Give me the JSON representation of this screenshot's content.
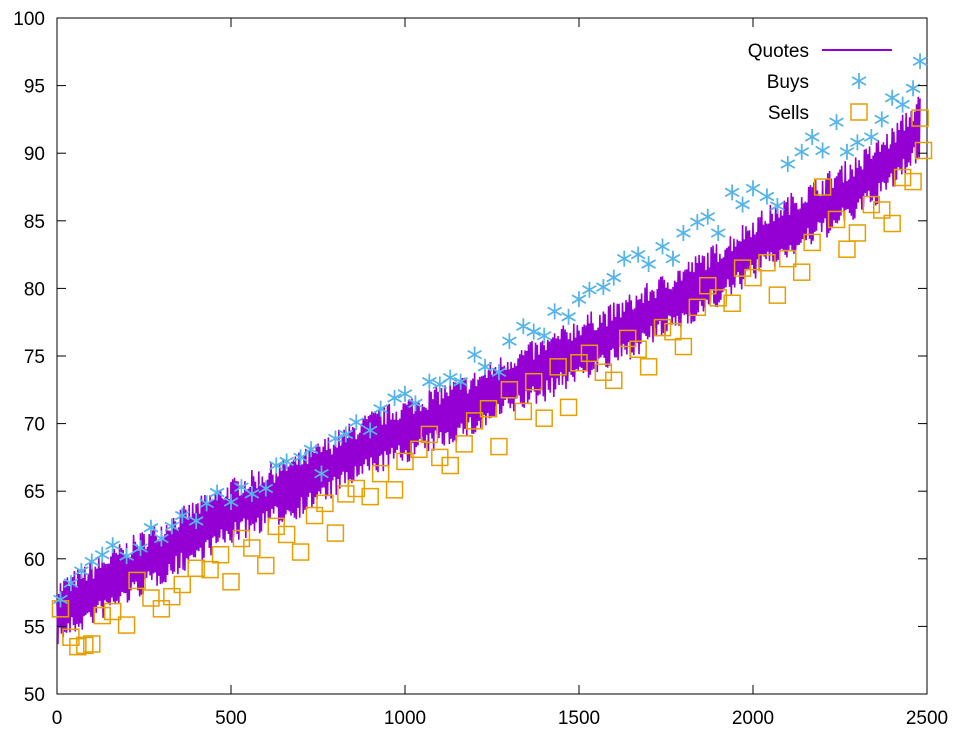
{
  "chart_data": {
    "type": "line",
    "title": "",
    "xlabel": "",
    "ylabel": "",
    "xlim": [
      0,
      2500
    ],
    "ylim": [
      50,
      100
    ],
    "xticks": [
      0,
      500,
      1000,
      1500,
      2000,
      2500
    ],
    "yticks": [
      50,
      55,
      60,
      65,
      70,
      75,
      80,
      85,
      90,
      95,
      100
    ],
    "grid": false,
    "legend_position": "top-right",
    "legend": [
      "Quotes",
      "Buys",
      "Sells"
    ],
    "colors": {
      "quotes": "#9400d3",
      "buys": "#56b4e9",
      "sells": "#e69f00"
    },
    "series": [
      {
        "name": "Quotes",
        "kind": "line",
        "x": [
          0,
          100,
          200,
          300,
          400,
          500,
          600,
          700,
          800,
          900,
          1000,
          1100,
          1200,
          1300,
          1400,
          1500,
          1600,
          1700,
          1800,
          1900,
          2000,
          2100,
          2200,
          2300,
          2400,
          2480
        ],
        "y": [
          56,
          57.5,
          59,
          60.5,
          62,
          63.5,
          64.5,
          65.5,
          67,
          68.5,
          69.5,
          70.5,
          71.5,
          73,
          74,
          75.5,
          76.5,
          78,
          79.5,
          81,
          83,
          84.5,
          86,
          87.5,
          89.5,
          92
        ],
        "band": 4.5
      },
      {
        "name": "Buys",
        "kind": "points",
        "x": [
          10,
          40,
          70,
          100,
          130,
          160,
          200,
          240,
          270,
          300,
          330,
          360,
          400,
          430,
          460,
          500,
          530,
          560,
          600,
          630,
          660,
          700,
          730,
          760,
          800,
          830,
          860,
          900,
          930,
          970,
          1000,
          1030,
          1070,
          1100,
          1130,
          1160,
          1200,
          1230,
          1270,
          1300,
          1340,
          1370,
          1400,
          1430,
          1470,
          1500,
          1530,
          1570,
          1600,
          1630,
          1670,
          1700,
          1740,
          1770,
          1800,
          1840,
          1870,
          1900,
          1940,
          1970,
          2000,
          2040,
          2070,
          2100,
          2140,
          2170,
          2200,
          2240,
          2270,
          2300,
          2340,
          2370,
          2400,
          2430,
          2460,
          2480
        ],
        "y": [
          57,
          58.2,
          59.1,
          59.8,
          60.3,
          61,
          60.2,
          60.8,
          62.3,
          61.5,
          62.4,
          63.2,
          62.8,
          64.1,
          64.9,
          64.2,
          65.3,
          64.8,
          65.2,
          66.9,
          67.2,
          67.5,
          68.1,
          66.3,
          68.9,
          69.2,
          70.1,
          69.5,
          71.1,
          71.9,
          72.2,
          71.5,
          73.1,
          72.9,
          73.4,
          73.1,
          75.1,
          74.2,
          73.8,
          76.1,
          77.2,
          76.8,
          76.5,
          78.3,
          77.9,
          79.2,
          79.9,
          80.1,
          80.8,
          82.2,
          82.5,
          81.8,
          83.1,
          82.2,
          84.1,
          84.9,
          85.3,
          84.1,
          87.1,
          86.2,
          87.4,
          86.8,
          86.1,
          89.2,
          90.1,
          91.2,
          90.2,
          92.3,
          90.1,
          90.8,
          91.2,
          92.5,
          94.1,
          93.6,
          94.8,
          96.8
        ]
      },
      {
        "name": "Sells",
        "kind": "points",
        "x": [
          10,
          40,
          60,
          80,
          100,
          130,
          160,
          200,
          230,
          270,
          300,
          330,
          360,
          400,
          440,
          470,
          500,
          530,
          560,
          600,
          630,
          660,
          700,
          740,
          770,
          800,
          830,
          860,
          900,
          930,
          970,
          1000,
          1040,
          1070,
          1100,
          1130,
          1170,
          1200,
          1240,
          1270,
          1300,
          1340,
          1370,
          1400,
          1440,
          1470,
          1500,
          1530,
          1570,
          1600,
          1640,
          1670,
          1700,
          1740,
          1770,
          1800,
          1840,
          1870,
          1900,
          1940,
          1970,
          2000,
          2040,
          2070,
          2100,
          2140,
          2170,
          2200,
          2240,
          2270,
          2300,
          2340,
          2370,
          2400,
          2430,
          2460,
          2480,
          2490
        ],
        "y": [
          56.3,
          54.2,
          53.5,
          53.6,
          53.7,
          55.8,
          56.1,
          55.1,
          58.4,
          57.1,
          56.3,
          57.2,
          58.1,
          59.3,
          59.2,
          60.3,
          58.3,
          61.5,
          60.8,
          59.5,
          62.4,
          61.8,
          60.5,
          63.2,
          64.1,
          61.9,
          64.8,
          65.2,
          64.6,
          66.3,
          65.1,
          67.2,
          68.1,
          69.2,
          67.5,
          66.9,
          68.5,
          70.2,
          71.1,
          68.3,
          72.5,
          70.9,
          73.1,
          70.4,
          74.2,
          71.2,
          74.5,
          75.2,
          73.8,
          73.2,
          76.3,
          75.5,
          74.2,
          77.1,
          76.8,
          75.7,
          78.6,
          80.2,
          79.3,
          78.9,
          81.5,
          80.8,
          81.9,
          79.5,
          82.2,
          81.2,
          83.4,
          87.5,
          85.1,
          82.9,
          84.1,
          86.2,
          85.8,
          84.8,
          88.2,
          87.9,
          92.6,
          90.2
        ]
      }
    ]
  }
}
